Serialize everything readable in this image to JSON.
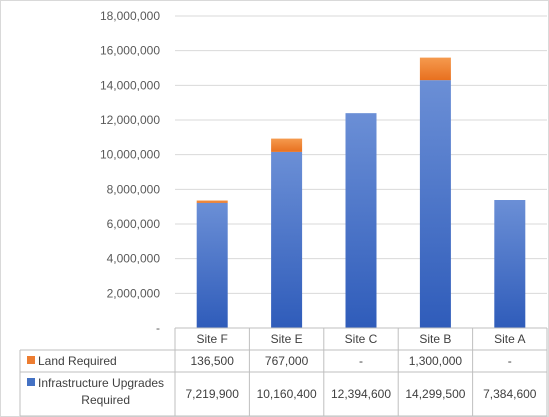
{
  "chart_data": {
    "type": "bar",
    "stacked": true,
    "categories": [
      "Site F",
      "Site E",
      "Site C",
      "Site B",
      "Site A"
    ],
    "series": [
      {
        "name": "Infrastructure Upgrades Required",
        "color": "#4472c4",
        "values": [
          7219900,
          10160400,
          12394600,
          14299500,
          7384600
        ],
        "labels": [
          "7,219,900",
          "10,160,400",
          "12,394,600",
          "14,299,500",
          "7,384,600"
        ]
      },
      {
        "name": "Land Required",
        "color": "#ed7d31",
        "values": [
          136500,
          767000,
          0,
          1300000,
          0
        ],
        "labels": [
          "136,500",
          "767,000",
          "-",
          "1,300,000",
          "-"
        ]
      }
    ],
    "yaxis": {
      "min": 0,
      "max": 18000000,
      "step": 2000000,
      "tick_labels": [
        "-",
        "2,000,000",
        "4,000,000",
        "6,000,000",
        "8,000,000",
        "10,000,000",
        "12,000,000",
        "14,000,000",
        "16,000,000",
        "18,000,000"
      ]
    },
    "grid": true,
    "legend": "data-table"
  }
}
